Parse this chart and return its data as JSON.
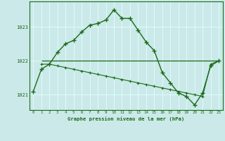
{
  "title": "Graphe pression niveau de la mer (hPa)",
  "background_color": "#cce9e9",
  "grid_color": "#ddffff",
  "line_color": "#1a6b1a",
  "xlim": [
    -0.5,
    23.5
  ],
  "ylim": [
    1020.55,
    1023.75
  ],
  "yticks": [
    1021,
    1022,
    1023
  ],
  "xticks": [
    0,
    1,
    2,
    3,
    4,
    5,
    6,
    7,
    8,
    9,
    10,
    11,
    12,
    13,
    14,
    15,
    16,
    17,
    18,
    19,
    20,
    21,
    22,
    23
  ],
  "series1_x": [
    0,
    1,
    2,
    3,
    4,
    5,
    6,
    7,
    8,
    9,
    10,
    11,
    12,
    13,
    14,
    15,
    16,
    17,
    18,
    19,
    20,
    21,
    22,
    23
  ],
  "series1_y": [
    1021.1,
    1021.75,
    1021.9,
    1022.25,
    1022.5,
    1022.6,
    1022.85,
    1023.05,
    1023.1,
    1023.2,
    1023.5,
    1023.25,
    1023.25,
    1022.9,
    1022.55,
    1022.3,
    1021.65,
    1021.35,
    1021.05,
    1020.95,
    1020.7,
    1021.05,
    1021.85,
    1022.0
  ],
  "series2_x": [
    1,
    2,
    3,
    4,
    5,
    6,
    7,
    8,
    9,
    10,
    11,
    12,
    13,
    14,
    15,
    16,
    17,
    18,
    19,
    20,
    21,
    22,
    23
  ],
  "series2_y": [
    1021.9,
    1021.9,
    1021.85,
    1021.8,
    1021.75,
    1021.7,
    1021.65,
    1021.6,
    1021.55,
    1021.5,
    1021.45,
    1021.4,
    1021.35,
    1021.3,
    1021.25,
    1021.2,
    1021.15,
    1021.1,
    1021.05,
    1021.0,
    1020.95,
    1021.9,
    1022.0
  ],
  "hline_y": 1022.0,
  "hline_x_start": 1,
  "hline_x_end": 23
}
